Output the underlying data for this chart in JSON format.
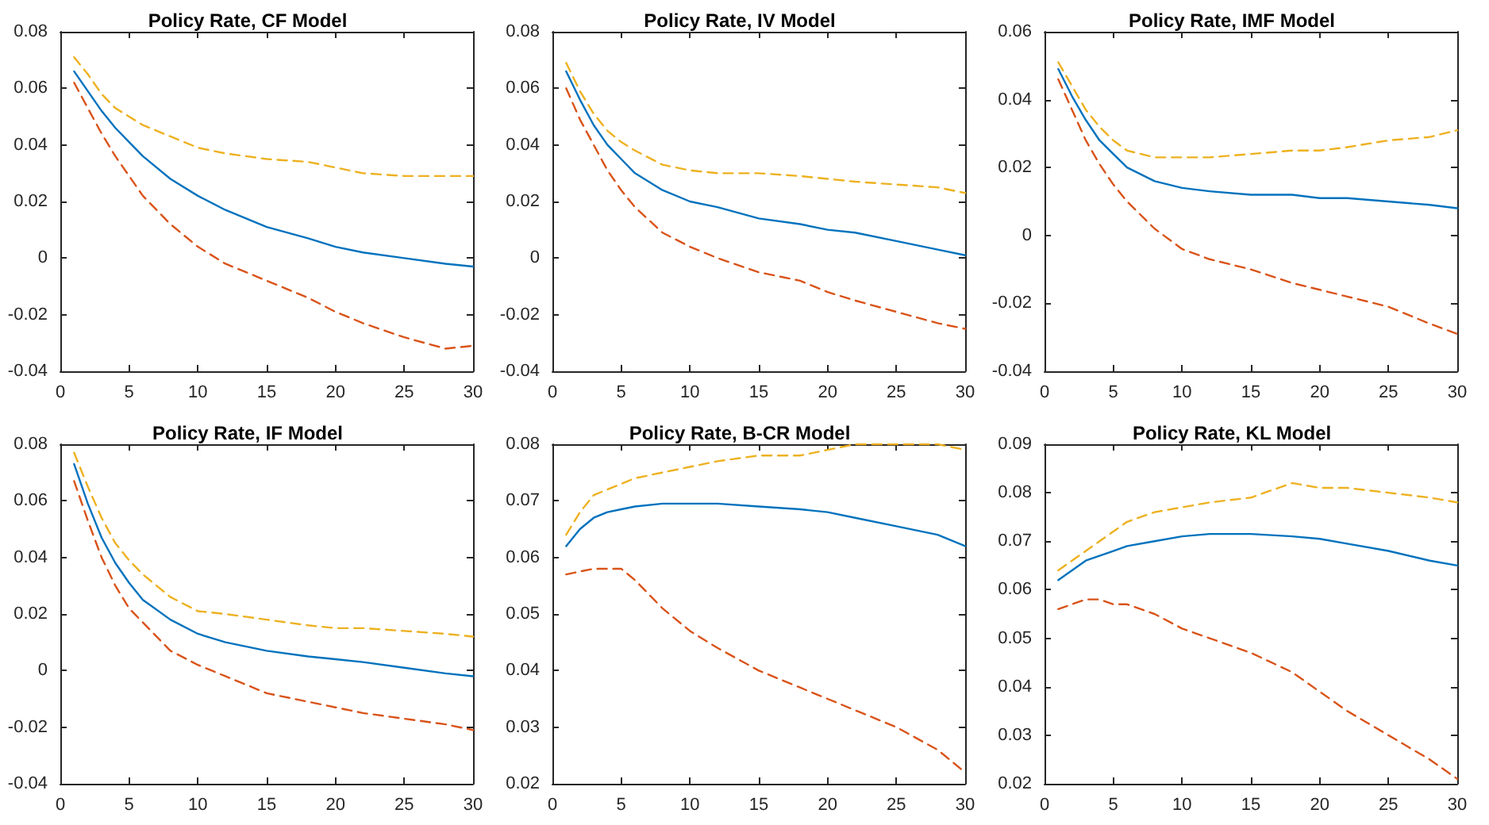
{
  "chart_data": [
    {
      "type": "line",
      "title": "Policy Rate, CF Model",
      "x": [
        1,
        2,
        3,
        4,
        5,
        6,
        8,
        10,
        12,
        15,
        18,
        20,
        22,
        25,
        28,
        30
      ],
      "xlim": [
        0,
        30
      ],
      "xticks": [
        0,
        5,
        10,
        15,
        20,
        25,
        30
      ],
      "ylim": [
        -0.04,
        0.08
      ],
      "yticks": [
        -0.04,
        -0.02,
        0,
        0.02,
        0.04,
        0.06,
        0.08
      ],
      "marker": "none",
      "series": [
        {
          "color": "#0072bd",
          "line_style": "solid",
          "values": [
            0.066,
            0.059,
            0.052,
            0.046,
            0.041,
            0.036,
            0.028,
            0.022,
            0.017,
            0.011,
            0.007,
            0.004,
            0.002,
            0.0,
            -0.002,
            -0.003
          ]
        },
        {
          "color": "#edb120",
          "line_style": "dashed",
          "values": [
            0.071,
            0.065,
            0.058,
            0.053,
            0.05,
            0.047,
            0.043,
            0.039,
            0.037,
            0.035,
            0.034,
            0.032,
            0.03,
            0.029,
            0.029,
            0.029
          ]
        },
        {
          "color": "#d95319",
          "line_style": "dashed",
          "values": [
            0.062,
            0.053,
            0.044,
            0.036,
            0.029,
            0.022,
            0.012,
            0.004,
            -0.002,
            -0.008,
            -0.014,
            -0.019,
            -0.023,
            -0.028,
            -0.032,
            -0.031
          ]
        }
      ]
    },
    {
      "type": "line",
      "title": "Policy Rate, IV Model",
      "x": [
        1,
        2,
        3,
        4,
        5,
        6,
        8,
        10,
        12,
        15,
        18,
        20,
        22,
        25,
        28,
        30
      ],
      "xlim": [
        0,
        30
      ],
      "xticks": [
        0,
        5,
        10,
        15,
        20,
        25,
        30
      ],
      "ylim": [
        -0.04,
        0.08
      ],
      "yticks": [
        -0.04,
        -0.02,
        0,
        0.02,
        0.04,
        0.06,
        0.08
      ],
      "marker": "none",
      "series": [
        {
          "color": "#0072bd",
          "line_style": "solid",
          "values": [
            0.066,
            0.056,
            0.047,
            0.04,
            0.035,
            0.03,
            0.024,
            0.02,
            0.018,
            0.014,
            0.012,
            0.01,
            0.009,
            0.006,
            0.003,
            0.001
          ]
        },
        {
          "color": "#edb120",
          "line_style": "dashed",
          "values": [
            0.069,
            0.059,
            0.051,
            0.045,
            0.041,
            0.038,
            0.033,
            0.031,
            0.03,
            0.03,
            0.029,
            0.028,
            0.027,
            0.026,
            0.025,
            0.023
          ]
        },
        {
          "color": "#d95319",
          "line_style": "dashed",
          "values": [
            0.06,
            0.049,
            0.04,
            0.031,
            0.024,
            0.018,
            0.009,
            0.004,
            0.0,
            -0.005,
            -0.008,
            -0.012,
            -0.015,
            -0.019,
            -0.023,
            -0.025
          ]
        }
      ]
    },
    {
      "type": "line",
      "title": "Policy Rate, IMF Model",
      "x": [
        1,
        2,
        3,
        4,
        5,
        6,
        8,
        10,
        12,
        15,
        18,
        20,
        22,
        25,
        28,
        30
      ],
      "xlim": [
        0,
        30
      ],
      "xticks": [
        0,
        5,
        10,
        15,
        20,
        25,
        30
      ],
      "ylim": [
        -0.04,
        0.06
      ],
      "yticks": [
        -0.04,
        -0.02,
        0,
        0.02,
        0.04,
        0.06
      ],
      "marker": "none",
      "series": [
        {
          "color": "#0072bd",
          "line_style": "solid",
          "values": [
            0.049,
            0.041,
            0.034,
            0.028,
            0.024,
            0.02,
            0.016,
            0.014,
            0.013,
            0.012,
            0.012,
            0.011,
            0.011,
            0.01,
            0.009,
            0.008
          ]
        },
        {
          "color": "#edb120",
          "line_style": "dashed",
          "values": [
            0.051,
            0.044,
            0.037,
            0.032,
            0.028,
            0.025,
            0.023,
            0.023,
            0.023,
            0.024,
            0.025,
            0.025,
            0.026,
            0.028,
            0.029,
            0.031
          ]
        },
        {
          "color": "#d95319",
          "line_style": "dashed",
          "values": [
            0.046,
            0.037,
            0.028,
            0.021,
            0.015,
            0.01,
            0.002,
            -0.004,
            -0.007,
            -0.01,
            -0.014,
            -0.016,
            -0.018,
            -0.021,
            -0.026,
            -0.029
          ]
        }
      ]
    },
    {
      "type": "line",
      "title": "Policy Rate, IF Model",
      "x": [
        1,
        2,
        3,
        4,
        5,
        6,
        8,
        10,
        12,
        15,
        18,
        20,
        22,
        25,
        28,
        30
      ],
      "xlim": [
        0,
        30
      ],
      "xticks": [
        0,
        5,
        10,
        15,
        20,
        25,
        30
      ],
      "ylim": [
        -0.04,
        0.08
      ],
      "yticks": [
        -0.04,
        -0.02,
        0,
        0.02,
        0.04,
        0.06,
        0.08
      ],
      "marker": "none",
      "series": [
        {
          "color": "#0072bd",
          "line_style": "solid",
          "values": [
            0.073,
            0.059,
            0.047,
            0.038,
            0.031,
            0.025,
            0.018,
            0.013,
            0.01,
            0.007,
            0.005,
            0.004,
            0.003,
            0.001,
            -0.001,
            -0.002
          ]
        },
        {
          "color": "#edb120",
          "line_style": "dashed",
          "values": [
            0.077,
            0.065,
            0.054,
            0.045,
            0.039,
            0.034,
            0.026,
            0.021,
            0.02,
            0.018,
            0.016,
            0.015,
            0.015,
            0.014,
            0.013,
            0.012
          ]
        },
        {
          "color": "#d95319",
          "line_style": "dashed",
          "values": [
            0.067,
            0.053,
            0.04,
            0.03,
            0.022,
            0.017,
            0.007,
            0.002,
            -0.002,
            -0.008,
            -0.011,
            -0.013,
            -0.015,
            -0.017,
            -0.019,
            -0.021
          ]
        }
      ]
    },
    {
      "type": "line",
      "title": "Policy Rate, B-CR Model",
      "x": [
        1,
        2,
        3,
        4,
        5,
        6,
        8,
        10,
        12,
        15,
        18,
        20,
        22,
        25,
        28,
        30
      ],
      "xlim": [
        0,
        30
      ],
      "xticks": [
        0,
        5,
        10,
        15,
        20,
        25,
        30
      ],
      "ylim": [
        0.02,
        0.08
      ],
      "yticks": [
        0.02,
        0.03,
        0.04,
        0.05,
        0.06,
        0.07,
        0.08
      ],
      "marker": "none",
      "series": [
        {
          "color": "#0072bd",
          "line_style": "solid",
          "values": [
            0.062,
            0.065,
            0.067,
            0.068,
            0.0685,
            0.069,
            0.0695,
            0.0695,
            0.0695,
            0.069,
            0.0685,
            0.068,
            0.067,
            0.0655,
            0.064,
            0.062
          ]
        },
        {
          "color": "#edb120",
          "line_style": "dashed",
          "values": [
            0.064,
            0.068,
            0.071,
            0.072,
            0.073,
            0.074,
            0.075,
            0.076,
            0.077,
            0.078,
            0.078,
            0.079,
            0.08,
            0.08,
            0.08,
            0.079
          ]
        },
        {
          "color": "#d95319",
          "line_style": "dashed",
          "values": [
            0.057,
            0.0575,
            0.058,
            0.058,
            0.058,
            0.056,
            0.051,
            0.047,
            0.044,
            0.04,
            0.037,
            0.035,
            0.033,
            0.03,
            0.026,
            0.022
          ]
        }
      ]
    },
    {
      "type": "line",
      "title": "Policy Rate, KL Model",
      "x": [
        1,
        2,
        3,
        4,
        5,
        6,
        8,
        10,
        12,
        15,
        18,
        20,
        22,
        25,
        28,
        30
      ],
      "xlim": [
        0,
        30
      ],
      "xticks": [
        0,
        5,
        10,
        15,
        20,
        25,
        30
      ],
      "ylim": [
        0.02,
        0.09
      ],
      "yticks": [
        0.02,
        0.03,
        0.04,
        0.05,
        0.06,
        0.07,
        0.08,
        0.09
      ],
      "marker": "none",
      "series": [
        {
          "color": "#0072bd",
          "line_style": "solid",
          "values": [
            0.062,
            0.064,
            0.066,
            0.067,
            0.068,
            0.069,
            0.07,
            0.071,
            0.0715,
            0.0715,
            0.071,
            0.0705,
            0.0695,
            0.068,
            0.066,
            0.065
          ]
        },
        {
          "color": "#edb120",
          "line_style": "dashed",
          "values": [
            0.064,
            0.066,
            0.068,
            0.07,
            0.072,
            0.074,
            0.076,
            0.077,
            0.078,
            0.079,
            0.082,
            0.081,
            0.081,
            0.08,
            0.079,
            0.078
          ]
        },
        {
          "color": "#d95319",
          "line_style": "dashed",
          "values": [
            0.056,
            0.057,
            0.058,
            0.058,
            0.057,
            0.057,
            0.055,
            0.052,
            0.05,
            0.047,
            0.043,
            0.039,
            0.035,
            0.03,
            0.025,
            0.021
          ]
        }
      ]
    }
  ]
}
